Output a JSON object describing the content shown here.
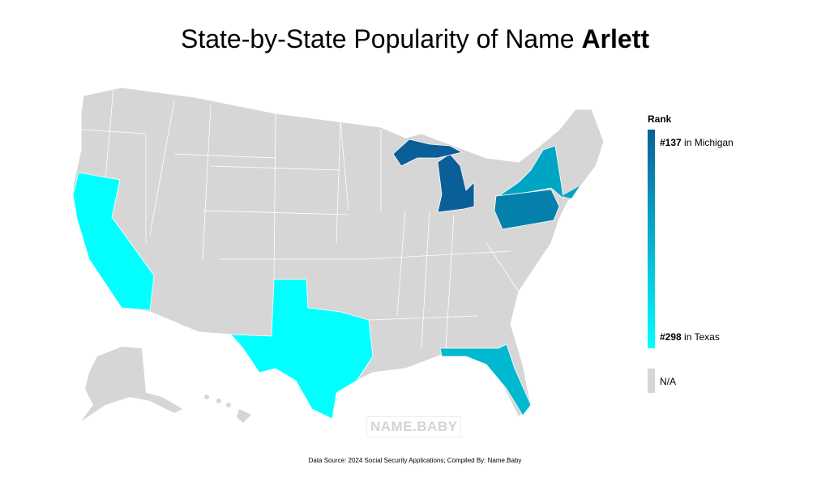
{
  "title": {
    "prefix": "State-by-State Popularity of Name ",
    "name": "Arlett"
  },
  "legend": {
    "title": "Rank",
    "top": {
      "rank": "#137",
      "state_text": " in Michigan"
    },
    "bottom": {
      "rank": "#298",
      "state_text": " in Texas"
    },
    "na_label": "N/A",
    "colors": {
      "top": "#0b5f99",
      "bottom": "#00ffff",
      "na": "#d6d6d6"
    }
  },
  "states_colored": [
    {
      "state": "Michigan",
      "rank": 137,
      "color": "#0b5f99"
    },
    {
      "state": "Pennsylvania",
      "color": "#0580ab"
    },
    {
      "state": "New York",
      "color": "#00a5c4"
    },
    {
      "state": "Florida",
      "color": "#00b8d0"
    },
    {
      "state": "California",
      "color": "#00ffff"
    },
    {
      "state": "Texas",
      "rank": 298,
      "color": "#00ffff"
    }
  ],
  "watermark": "NAME.BABY",
  "source": "Data Source: 2024 Social Security Applications; Compiled By: Name.Baby"
}
